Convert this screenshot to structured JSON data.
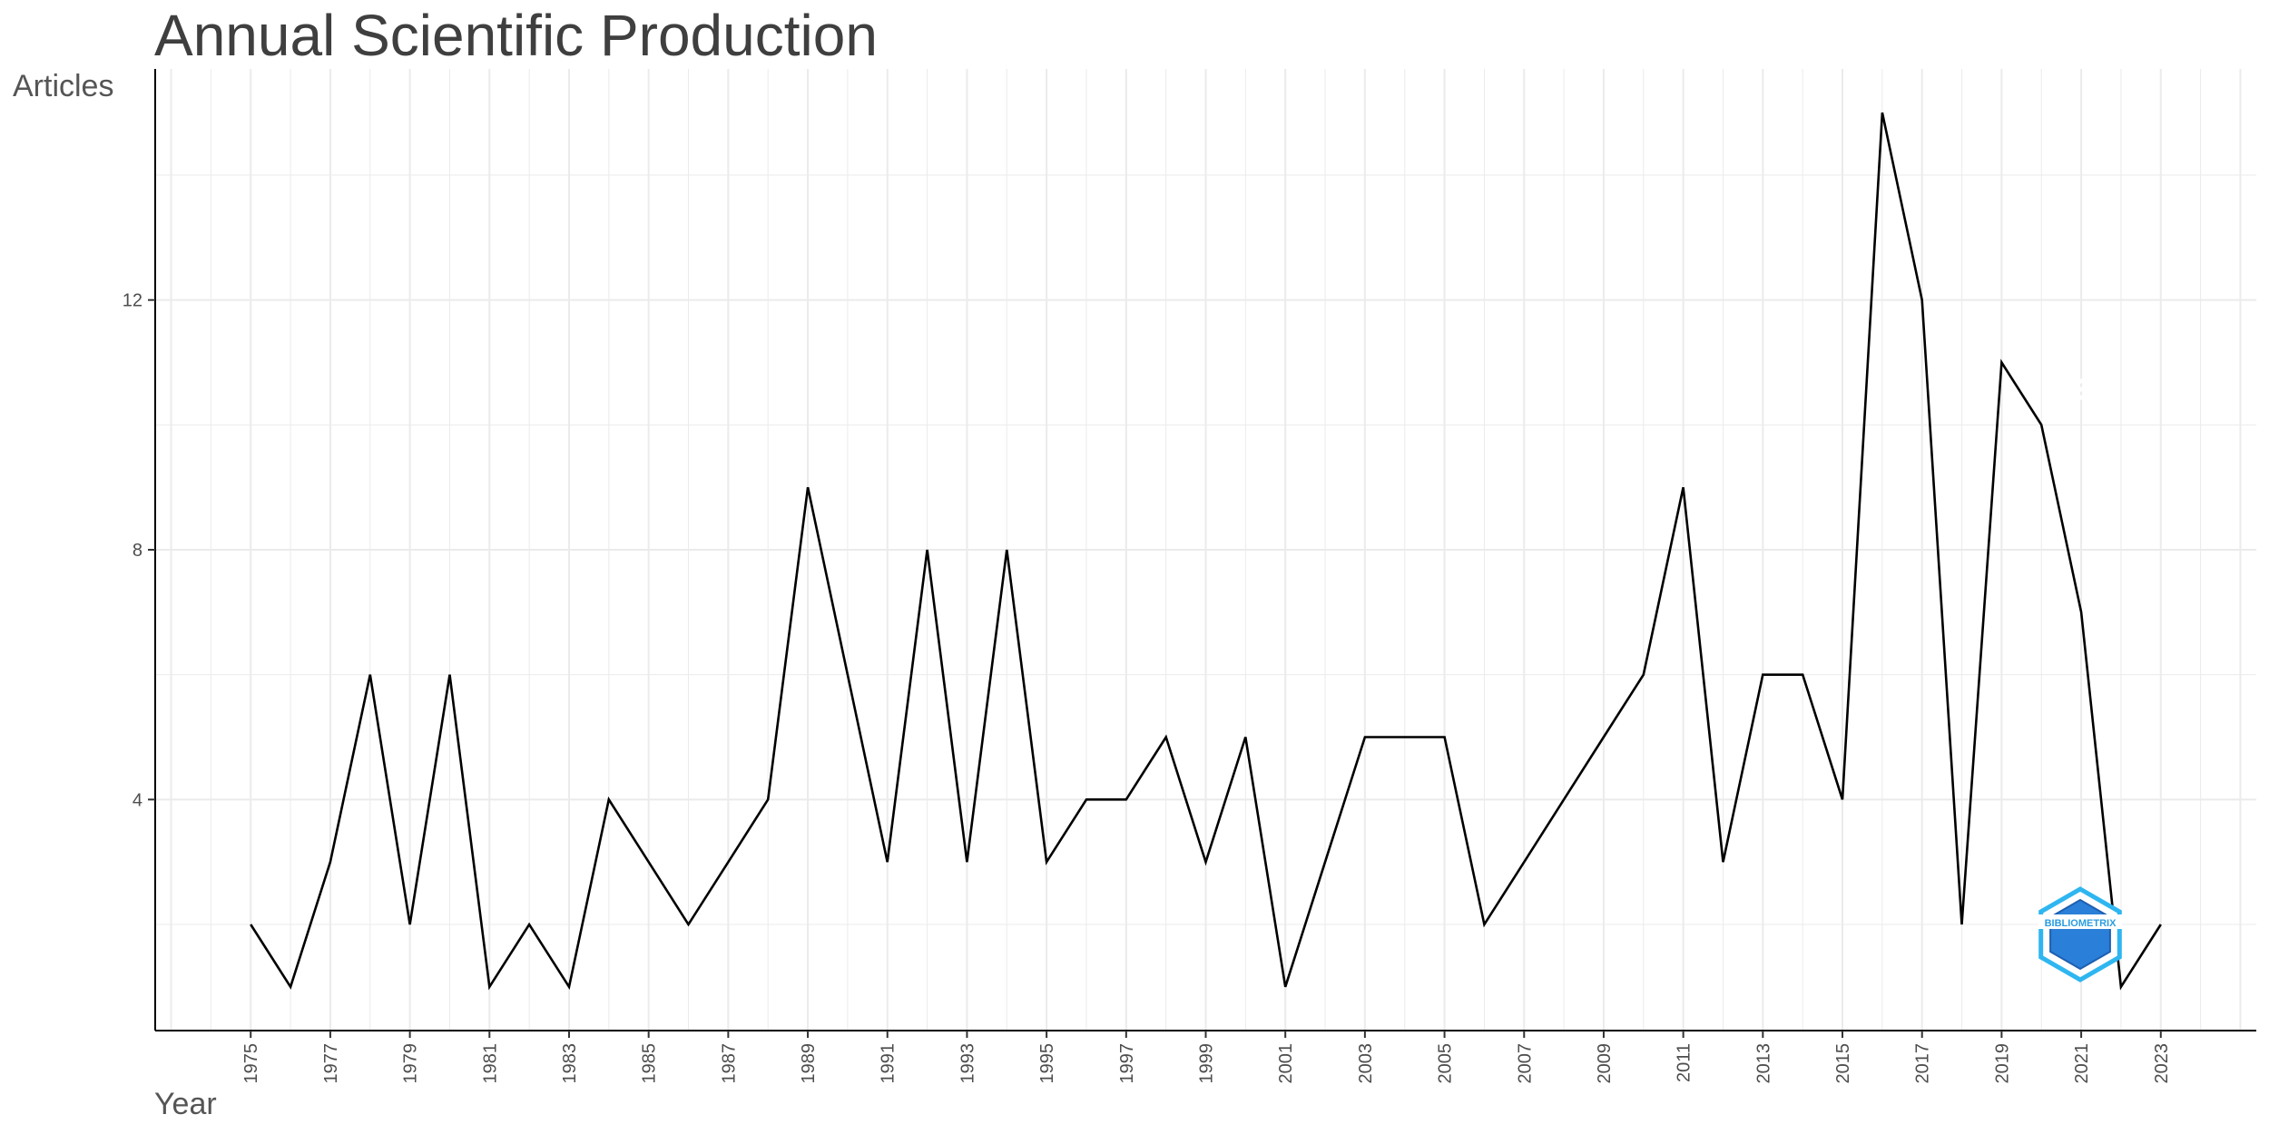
{
  "chart_data": {
    "type": "line",
    "title": "Annual Scientific Production",
    "xlabel": "Year",
    "ylabel": "Articles",
    "x": [
      1975,
      1976,
      1977,
      1978,
      1979,
      1980,
      1981,
      1982,
      1983,
      1984,
      1985,
      1986,
      1987,
      1988,
      1989,
      1990,
      1991,
      1992,
      1993,
      1994,
      1995,
      1996,
      1997,
      1998,
      1999,
      2000,
      2001,
      2002,
      2003,
      2004,
      2005,
      2006,
      2007,
      2008,
      2009,
      2010,
      2011,
      2012,
      2013,
      2014,
      2015,
      2016,
      2017,
      2018,
      2019,
      2020,
      2021,
      2022,
      2023
    ],
    "series": [
      {
        "values": [
          2,
          1,
          3,
          6,
          2,
          6,
          1,
          2,
          1,
          4,
          3,
          2,
          3,
          4,
          9,
          6,
          3,
          8,
          3,
          8,
          3,
          4,
          4,
          5,
          3,
          5,
          1,
          3,
          5,
          5,
          5,
          2,
          3,
          4,
          5,
          6,
          9,
          3,
          6,
          6,
          4,
          15,
          12,
          2,
          11,
          10,
          7,
          1,
          2
        ]
      }
    ],
    "x_tick_labels": [
      "1975",
      "1977",
      "1979",
      "1981",
      "1983",
      "1985",
      "1987",
      "1989",
      "1991",
      "1993",
      "1995",
      "1997",
      "1999",
      "2001",
      "2003",
      "2005",
      "2007",
      "2009",
      "2011",
      "2013",
      "2015",
      "2017",
      "2019",
      "2021",
      "2023"
    ],
    "y_ticks": [
      4,
      8,
      12
    ],
    "xlim": [
      1972.6,
      2025.4
    ],
    "ylim": [
      0.3,
      15.7
    ],
    "grid": true,
    "line_color": "#000000",
    "grid_color": "#ebebeb",
    "logo": {
      "text": "BIBLIOMETRIX",
      "color": "#2a9de0"
    }
  }
}
